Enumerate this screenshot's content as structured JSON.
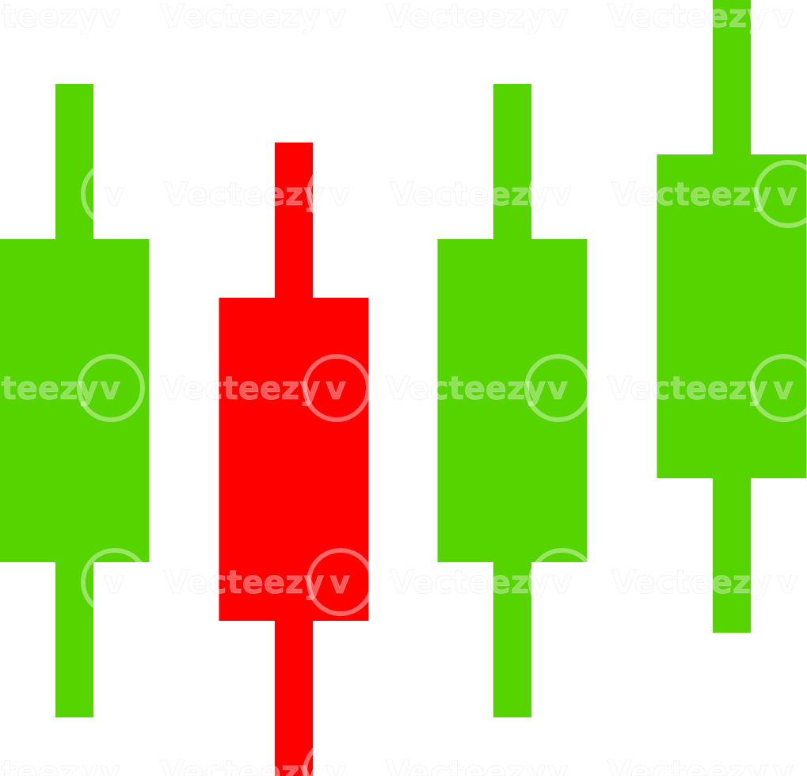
{
  "chart_data": {
    "type": "candlestick",
    "title": "",
    "xlabel": "",
    "ylabel": "",
    "ylim": [
      0,
      980
    ],
    "grid": false,
    "legend": "none",
    "candles": [
      {
        "name": "candle-1",
        "open": 270,
        "close": 678,
        "low": 74,
        "high": 874,
        "direction": "up"
      },
      {
        "name": "candle-2",
        "open": 604,
        "close": 196,
        "low": 0,
        "high": 800,
        "direction": "down"
      },
      {
        "name": "candle-3",
        "open": 270,
        "close": 678,
        "low": 74,
        "high": 874,
        "direction": "up"
      },
      {
        "name": "candle-4",
        "open": 376,
        "close": 785,
        "low": 181,
        "high": 980,
        "direction": "up"
      }
    ],
    "colors": {
      "up": "#55d400",
      "down": "#ff0000",
      "background": "#ffffff"
    }
  },
  "watermark": {
    "text": "Vecteezy",
    "logo_glyph": "v"
  }
}
